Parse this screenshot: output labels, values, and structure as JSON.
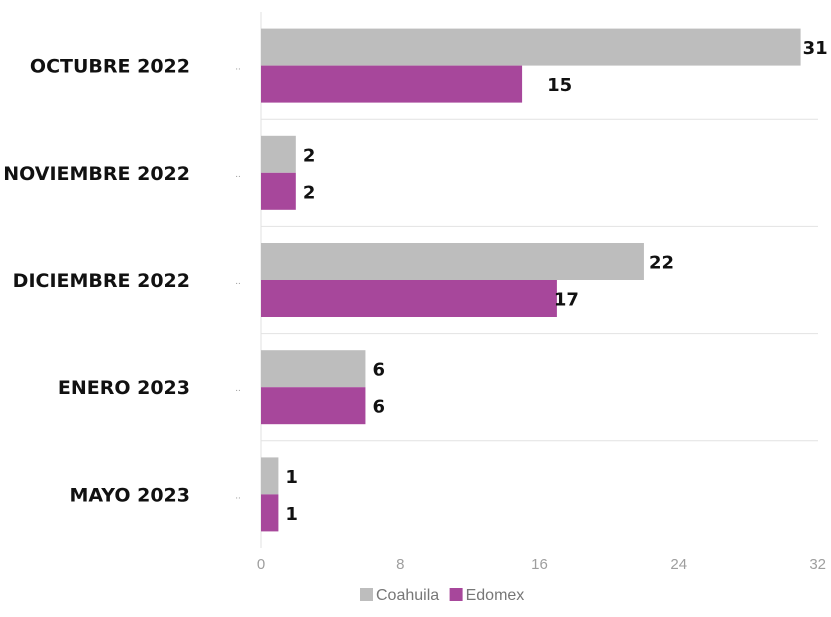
{
  "chart_data": {
    "type": "bar",
    "orientation": "horizontal",
    "categories": [
      "OCTUBRE 2022",
      "NOVIEMBRE 2022",
      "DICIEMBRE 2022",
      "ENERO 2023",
      "MAYO 2023"
    ],
    "series": [
      {
        "name": "Coahuila",
        "values": [
          31,
          2,
          22,
          6,
          1
        ],
        "color": "#bdbdbd"
      },
      {
        "name": "Edomex",
        "values": [
          15,
          2,
          17,
          6,
          1
        ],
        "color": "#a7479b"
      }
    ],
    "xticks": [
      "0",
      "8",
      "16",
      "24",
      "32"
    ],
    "xlim": [
      0,
      32
    ],
    "title": "",
    "xlabel": "",
    "ylabel": "",
    "grid": true,
    "legend_position": "bottom-center"
  }
}
